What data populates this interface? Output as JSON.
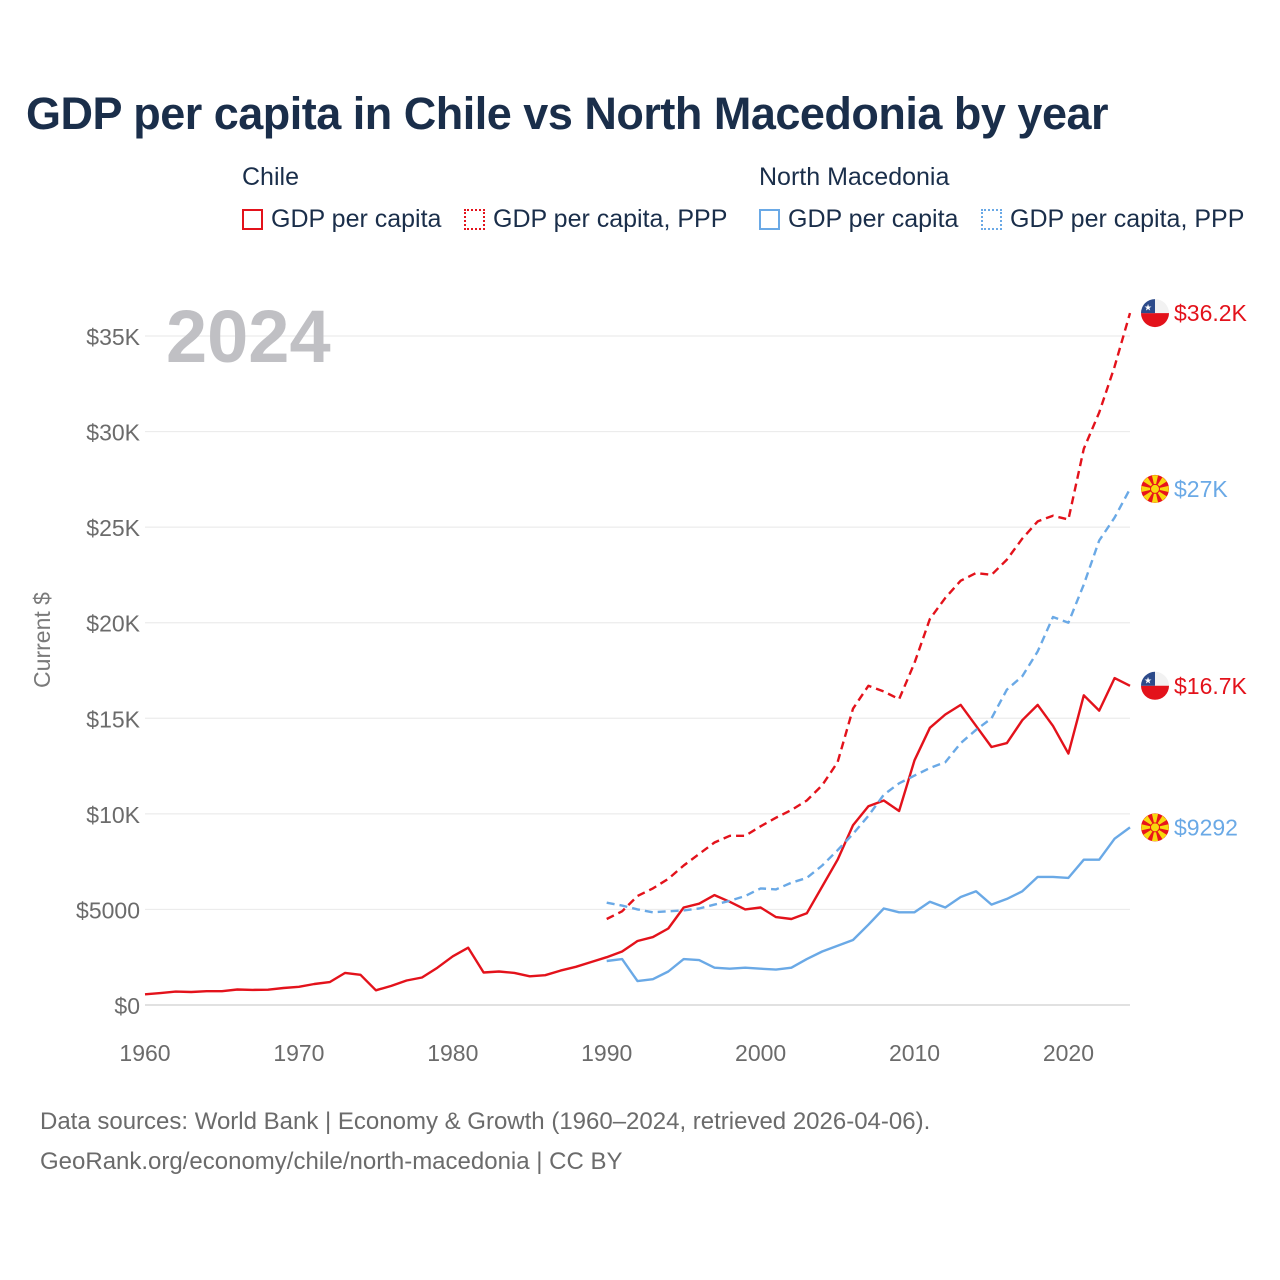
{
  "title": "GDP per capita in Chile vs North Macedonia by year",
  "legend": {
    "groups": [
      {
        "name": "Chile",
        "items": [
          "GDP per capita",
          "GDP per capita, PPP"
        ],
        "color": "#e3121b"
      },
      {
        "name": "North Macedonia",
        "items": [
          "GDP per capita",
          "GDP per capita, PPP"
        ],
        "color": "#6aa9e6"
      }
    ]
  },
  "year_label": "2024",
  "source": {
    "line1": "Data sources: World Bank | Economy & Growth (1960–2024, retrieved 2026-04-06).",
    "line2": "GeoRank.org/economy/chile/north-macedonia | CC BY"
  },
  "chart_data": {
    "type": "line",
    "title": "GDP per capita in Chile vs North Macedonia by year",
    "xlabel": "",
    "ylabel": "Current $",
    "xlim": [
      1960,
      2024
    ],
    "ylim": [
      0,
      36500
    ],
    "x_ticks": [
      1960,
      1970,
      1980,
      1990,
      2000,
      2010,
      2020
    ],
    "x_tick_labels": [
      "1960",
      "1970",
      "1980",
      "1990",
      "2000",
      "2010",
      "2020"
    ],
    "y_ticks": [
      0,
      5000,
      10000,
      15000,
      20000,
      25000,
      30000,
      35000
    ],
    "y_tick_labels": [
      "$0",
      "$5000",
      "$10K",
      "$15K",
      "$20K",
      "$25K",
      "$30K",
      "$35K"
    ],
    "grid": true,
    "series": [
      {
        "name": "Chile GDP per capita",
        "color": "#e3121b",
        "style": "solid",
        "end_label": "$16.7K",
        "x": [
          1960,
          1961,
          1962,
          1963,
          1964,
          1965,
          1966,
          1967,
          1968,
          1969,
          1970,
          1971,
          1972,
          1973,
          1974,
          1975,
          1976,
          1977,
          1978,
          1979,
          1980,
          1981,
          1982,
          1983,
          1984,
          1985,
          1986,
          1987,
          1988,
          1989,
          1990,
          1991,
          1992,
          1993,
          1994,
          1995,
          1996,
          1997,
          1998,
          1999,
          2000,
          2001,
          2002,
          2003,
          2004,
          2005,
          2006,
          2007,
          2008,
          2009,
          2010,
          2011,
          2012,
          2013,
          2014,
          2015,
          2016,
          2017,
          2018,
          2019,
          2020,
          2021,
          2022,
          2023,
          2024
        ],
        "values": [
          560,
          620,
          700,
          680,
          720,
          720,
          810,
          790,
          800,
          890,
          950,
          1100,
          1200,
          1680,
          1580,
          770,
          1000,
          1280,
          1440,
          1950,
          2550,
          3000,
          1700,
          1750,
          1680,
          1500,
          1560,
          1800,
          2000,
          2250,
          2500,
          2800,
          3350,
          3550,
          4000,
          5100,
          5300,
          5750,
          5400,
          5000,
          5100,
          4600,
          4500,
          4800,
          6200,
          7600,
          9400,
          10400,
          10700,
          10150,
          12800,
          14500,
          15200,
          15700,
          14600,
          13500,
          13700,
          14900,
          15700,
          14600,
          13150,
          16200,
          15400,
          17100,
          16700
        ]
      },
      {
        "name": "Chile GDP per capita, PPP",
        "color": "#e3121b",
        "style": "dashed",
        "end_label": "$36.2K",
        "x": [
          1990,
          1991,
          1992,
          1993,
          1994,
          1995,
          1996,
          1997,
          1998,
          1999,
          2000,
          2001,
          2002,
          2003,
          2004,
          2005,
          2006,
          2007,
          2008,
          2009,
          2010,
          2011,
          2012,
          2013,
          2014,
          2015,
          2016,
          2017,
          2018,
          2019,
          2020,
          2021,
          2022,
          2023,
          2024
        ],
        "values": [
          4500,
          4900,
          5700,
          6100,
          6600,
          7300,
          7900,
          8500,
          8850,
          8850,
          9350,
          9800,
          10200,
          10700,
          11500,
          12700,
          15500,
          16700,
          16400,
          16000,
          17900,
          20200,
          21300,
          22200,
          22600,
          22500,
          23300,
          24400,
          25300,
          25600,
          25400,
          29100,
          31000,
          33400,
          36200
        ]
      },
      {
        "name": "North Macedonia GDP per capita",
        "color": "#6aa9e6",
        "style": "solid",
        "end_label": "$9292",
        "x": [
          1990,
          1991,
          1992,
          1993,
          1994,
          1995,
          1996,
          1997,
          1998,
          1999,
          2000,
          2001,
          2002,
          2003,
          2004,
          2005,
          2006,
          2007,
          2008,
          2009,
          2010,
          2011,
          2012,
          2013,
          2014,
          2015,
          2016,
          2017,
          2018,
          2019,
          2020,
          2021,
          2022,
          2023,
          2024
        ],
        "values": [
          2300,
          2400,
          1250,
          1350,
          1750,
          2400,
          2350,
          1950,
          1900,
          1950,
          1900,
          1850,
          1950,
          2400,
          2800,
          3100,
          3400,
          4200,
          5050,
          4850,
          4850,
          5400,
          5100,
          5650,
          5950,
          5250,
          5550,
          5950,
          6700,
          6700,
          6650,
          7600,
          7600,
          8700,
          9292
        ]
      },
      {
        "name": "North Macedonia GDP per capita, PPP",
        "color": "#6aa9e6",
        "style": "dashed",
        "end_label": "$27K",
        "x": [
          1990,
          1991,
          1992,
          1993,
          1994,
          1995,
          1996,
          1997,
          1998,
          1999,
          2000,
          2001,
          2002,
          2003,
          2004,
          2005,
          2006,
          2007,
          2008,
          2009,
          2010,
          2011,
          2012,
          2013,
          2014,
          2015,
          2016,
          2017,
          2018,
          2019,
          2020,
          2021,
          2022,
          2023,
          2024
        ],
        "values": [
          5350,
          5200,
          5000,
          4850,
          4900,
          4950,
          5050,
          5250,
          5450,
          5700,
          6100,
          6050,
          6400,
          6650,
          7300,
          8100,
          8950,
          9900,
          11000,
          11600,
          12000,
          12400,
          12700,
          13700,
          14400,
          15000,
          16500,
          17200,
          18500,
          20300,
          20000,
          22000,
          24300,
          25500,
          27000
        ]
      }
    ]
  }
}
